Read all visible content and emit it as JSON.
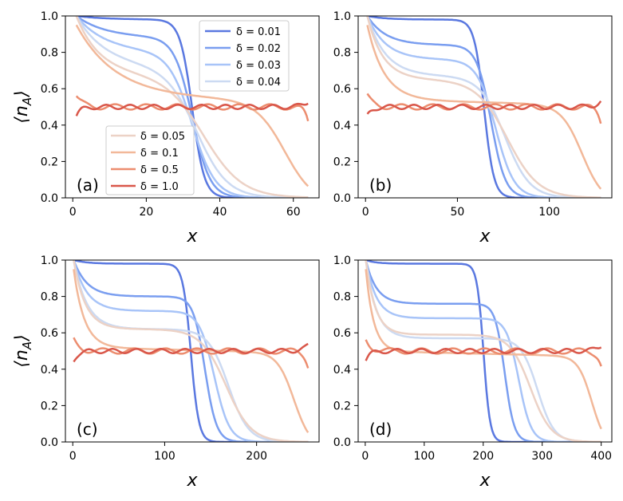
{
  "figure": {
    "ylabel": "⟨n_A⟩",
    "xlabel": "x"
  },
  "legend": {
    "upper": [
      "δ = 0.01",
      "δ = 0.02",
      "δ = 0.03",
      "δ = 0.04"
    ],
    "lower": [
      "δ = 0.05",
      "δ = 0.1",
      "δ = 0.5",
      "δ = 1.0"
    ]
  },
  "chart_data": [
    {
      "type": "line",
      "panel": "(a)",
      "L": 64,
      "xlim": [
        -2,
        67
      ],
      "ylim": [
        0,
        1
      ],
      "xticks": [
        0,
        20,
        40,
        60
      ],
      "yticks": [
        0.0,
        0.2,
        0.4,
        0.6,
        0.8,
        1.0
      ],
      "xlabel": "x",
      "ylabel": "⟨n_A⟩",
      "series": [
        {
          "name": "δ = 0.01",
          "color": "#5a78e0"
        },
        {
          "name": "δ = 0.02",
          "color": "#7a9ef0"
        },
        {
          "name": "δ = 0.03",
          "color": "#a8c4f8"
        },
        {
          "name": "δ = 0.04",
          "color": "#ccdaf2"
        },
        {
          "name": "δ = 0.05",
          "color": "#ecd2c6"
        },
        {
          "name": "δ = 0.1",
          "color": "#f2b899"
        },
        {
          "name": "δ = 0.5",
          "color": "#ec8d6f"
        },
        {
          "name": "δ = 1.0",
          "color": "#d9574a"
        }
      ]
    },
    {
      "type": "line",
      "panel": "(b)",
      "L": 128,
      "xlim": [
        -4,
        134
      ],
      "ylim": [
        0,
        1
      ],
      "xticks": [
        0,
        50,
        100
      ],
      "yticks": [
        0.0,
        0.2,
        0.4,
        0.6,
        0.8,
        1.0
      ],
      "xlabel": "x",
      "ylabel": ""
    },
    {
      "type": "line",
      "panel": "(c)",
      "L": 256,
      "xlim": [
        -8,
        268
      ],
      "ylim": [
        0,
        1
      ],
      "xticks": [
        0,
        100,
        200
      ],
      "yticks": [
        0.0,
        0.2,
        0.4,
        0.6,
        0.8,
        1.0
      ],
      "xlabel": "x",
      "ylabel": "⟨n_A⟩"
    },
    {
      "type": "line",
      "panel": "(d)",
      "L": 400,
      "xlim": [
        -12,
        418
      ],
      "ylim": [
        0,
        1
      ],
      "xticks": [
        0,
        100,
        200,
        300,
        400
      ],
      "yticks": [
        0.0,
        0.2,
        0.4,
        0.6,
        0.8,
        1.0
      ],
      "xlabel": "x",
      "ylabel": ""
    }
  ]
}
